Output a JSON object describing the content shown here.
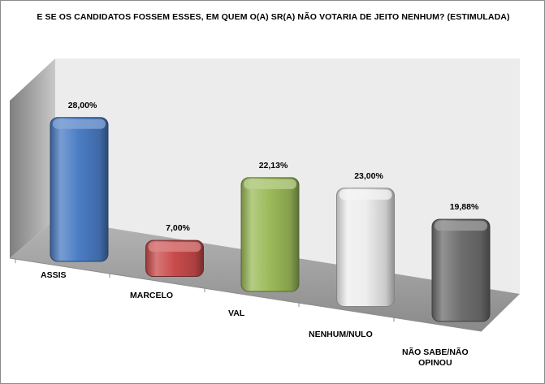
{
  "chart_data": {
    "type": "bar",
    "title": "E SE OS CANDIDATOS FOSSEM ESSES, EM QUEM O(A) SR(A) NÃO VOTARIA DE JEITO NENHUM? (ESTIMULADA)",
    "categories": [
      "ASSIS",
      "MARCELO",
      "VAL",
      "NENHUM/NULO",
      "NÃO SABE/NÃO\nOPINOU"
    ],
    "values": [
      28.0,
      7.0,
      22.13,
      23.0,
      19.88
    ],
    "data_labels": [
      "28,00%",
      "7,00%",
      "22,13%",
      "23,00%",
      "19,88%"
    ],
    "colors": [
      "#4a7cc4",
      "#c94b4b",
      "#9bbb59",
      "#eeeeee",
      "#6e6e6e"
    ],
    "style": "3d",
    "grid": false,
    "legend": "none"
  }
}
